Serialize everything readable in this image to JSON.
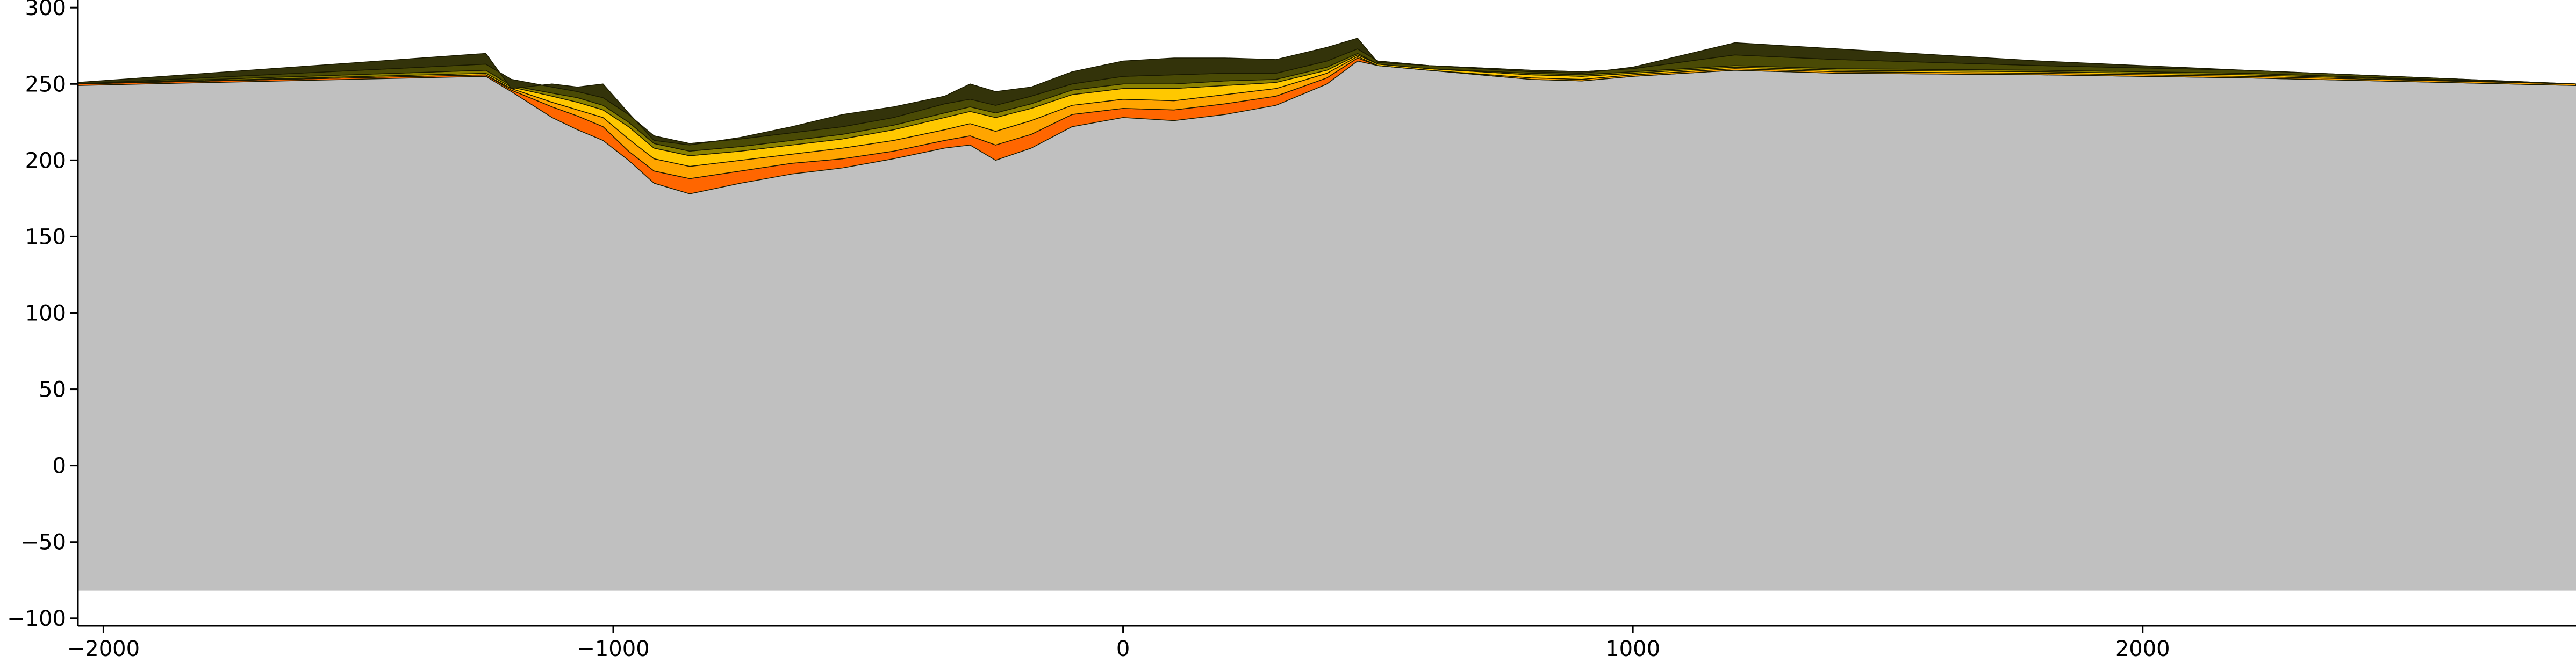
{
  "chart_data": {
    "type": "area",
    "title": "",
    "xlabel": "",
    "ylabel": "",
    "xlim": [
      -2050,
      2850
    ],
    "ylim": [
      -105,
      305
    ],
    "x_ticks": [
      -2000,
      -1000,
      0,
      1000,
      2000
    ],
    "x_tick_labels": [
      "−2000",
      "−1000",
      "0",
      "1000",
      "2000"
    ],
    "y_ticks": [
      300,
      250,
      200,
      150,
      100,
      50,
      0,
      -50,
      -100
    ],
    "y_tick_labels": [
      "300",
      "250",
      "200",
      "150",
      "100",
      "50",
      "0",
      "−50",
      "−100"
    ],
    "grid": false,
    "basement": {
      "name": "",
      "color": "#c0c0c0",
      "bottom": -82,
      "x": [
        -2050,
        -1250,
        -1200,
        -1120,
        -1070,
        -1020,
        -970,
        -920,
        -850,
        -750,
        -650,
        -550,
        -450,
        -350,
        -300,
        -250,
        -180,
        -100,
        0,
        100,
        200,
        300,
        400,
        460,
        500,
        600,
        800,
        900,
        1000,
        1200,
        1400,
        1800,
        2200,
        2850
      ],
      "top": [
        249,
        255,
        245,
        228,
        220,
        213,
        200,
        185,
        178,
        185,
        191,
        195,
        201,
        208,
        210,
        200,
        208,
        222,
        228,
        226,
        230,
        236,
        250,
        265,
        262,
        259,
        253,
        252,
        255,
        259,
        257,
        256,
        254,
        249
      ]
    },
    "layers": [
      {
        "color": "#ff6600",
        "top": [
          250,
          256,
          246,
          235,
          229,
          222,
          206,
          193,
          188,
          193,
          198,
          201,
          206,
          213,
          216,
          210,
          217,
          230,
          234,
          233,
          237,
          242,
          254,
          267,
          262,
          259,
          253,
          252,
          255,
          259,
          257,
          256,
          254,
          249
        ]
      },
      {
        "color": "#ffa500",
        "top": [
          250,
          256,
          247,
          238,
          233,
          228,
          214,
          201,
          196,
          200,
          204,
          208,
          213,
          220,
          224,
          219,
          226,
          236,
          240,
          239,
          243,
          247,
          257,
          268,
          262,
          259,
          254,
          253,
          256,
          260,
          258,
          257,
          255,
          250
        ]
      },
      {
        "color": "#ffc800",
        "top": [
          250,
          257,
          248,
          242,
          238,
          233,
          222,
          208,
          203,
          206,
          210,
          214,
          220,
          228,
          232,
          228,
          234,
          243,
          247,
          247,
          249,
          251,
          259,
          269,
          263,
          260,
          256,
          255,
          257,
          261,
          259,
          258,
          256,
          250
        ]
      },
      {
        "color": "#8c8200",
        "top": [
          250,
          259,
          249,
          244,
          241,
          236,
          225,
          211,
          206,
          209,
          213,
          217,
          223,
          231,
          235,
          231,
          237,
          246,
          250,
          250,
          252,
          253,
          261,
          270,
          263,
          260,
          257,
          256,
          258,
          262,
          260,
          259,
          257,
          250
        ]
      },
      {
        "color": "#4a4a05",
        "top": [
          250,
          263,
          253,
          248,
          245,
          241,
          230,
          216,
          211,
          214,
          218,
          222,
          228,
          237,
          240,
          236,
          242,
          250,
          255,
          256,
          257,
          257,
          265,
          273,
          265,
          262,
          259,
          258,
          260,
          269,
          266,
          262,
          259,
          250
        ]
      },
      {
        "color": "#33330a",
        "top": [
          251,
          270,
          247,
          250,
          248,
          250,
          231,
          213,
          210,
          215,
          222,
          230,
          235,
          242,
          250,
          245,
          248,
          258,
          265,
          267,
          267,
          266,
          274,
          280,
          264,
          262,
          258,
          257,
          261,
          277,
          273,
          265,
          259,
          250
        ]
      }
    ]
  }
}
